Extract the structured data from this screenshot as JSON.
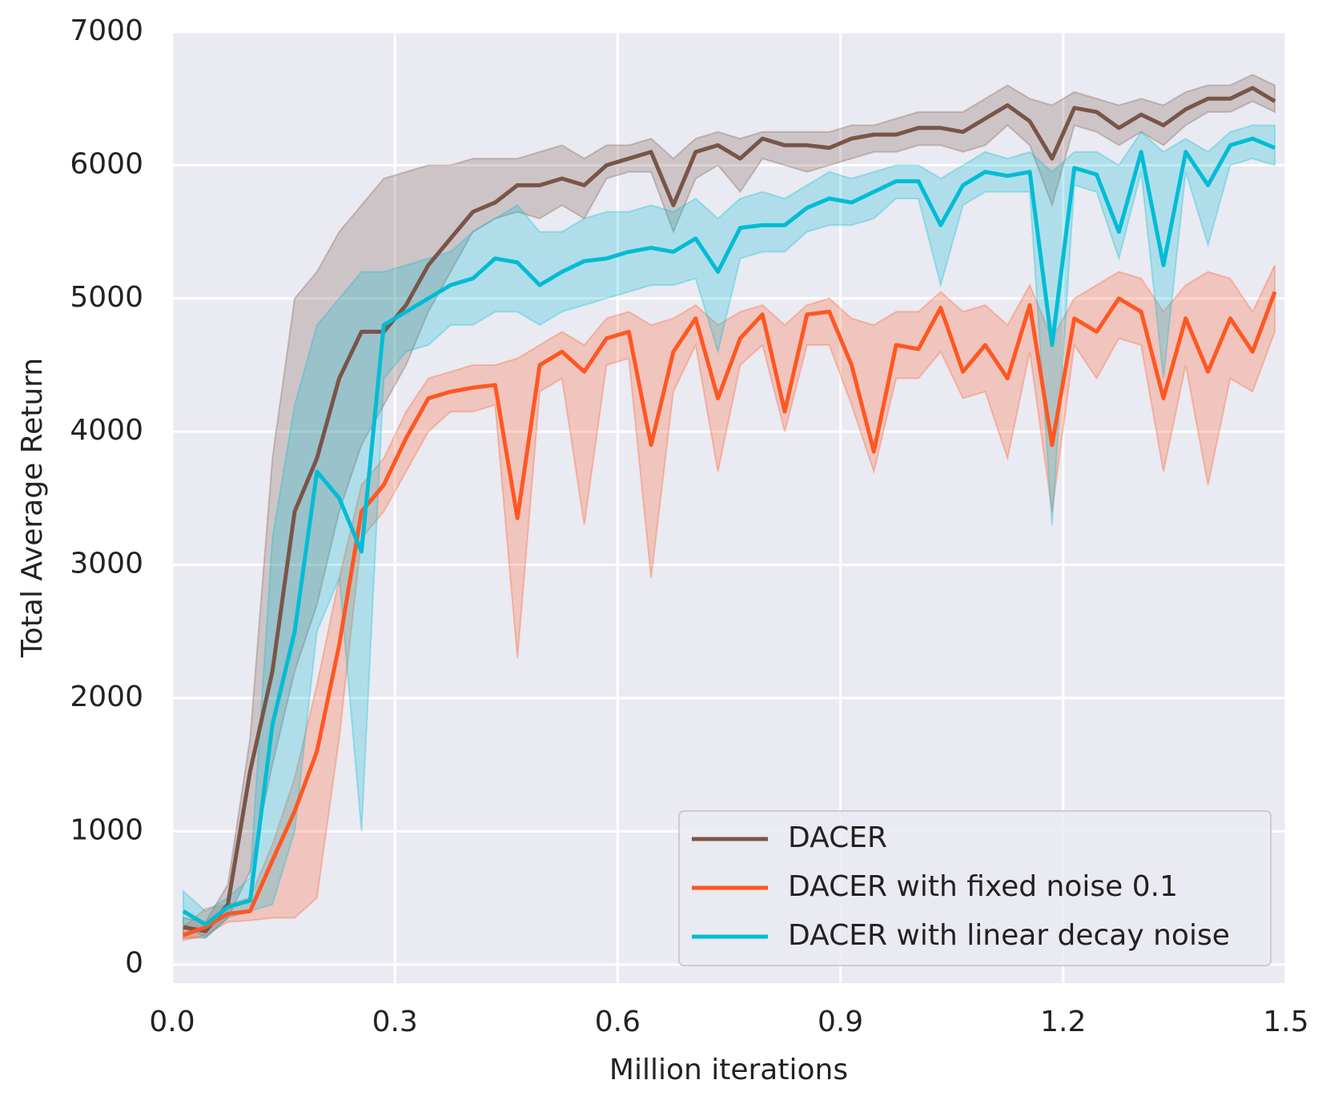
{
  "chart_data": {
    "type": "line",
    "xlabel": "Million iterations",
    "ylabel": "Total Average Return",
    "xlim": [
      0,
      1.5
    ],
    "ylim": [
      -140,
      7000
    ],
    "xticks": [
      {
        "value": 0,
        "label": "0.0"
      },
      0.3,
      0.6,
      0.9,
      1.2,
      1.5
    ],
    "yticks": [
      0,
      1000,
      2000,
      3000,
      4000,
      5000,
      6000,
      7000
    ],
    "grid": true,
    "legend": "lower right",
    "background": "#eaeaf2",
    "x": [
      0.015,
      0.045,
      0.075,
      0.105,
      0.135,
      0.165,
      0.195,
      0.225,
      0.255,
      0.285,
      0.315,
      0.345,
      0.375,
      0.405,
      0.435,
      0.465,
      0.495,
      0.525,
      0.555,
      0.585,
      0.615,
      0.645,
      0.675,
      0.705,
      0.735,
      0.765,
      0.795,
      0.825,
      0.855,
      0.885,
      0.915,
      0.945,
      0.975,
      1.005,
      1.035,
      1.065,
      1.095,
      1.125,
      1.155,
      1.185,
      1.215,
      1.245,
      1.275,
      1.305,
      1.335,
      1.365,
      1.395,
      1.425,
      1.455,
      1.485
    ],
    "series": [
      {
        "name": "DACER",
        "color": "#795548",
        "values": [
          280,
          250,
          450,
          1450,
          2200,
          3400,
          3800,
          4400,
          4750,
          4750,
          4950,
          5250,
          5450,
          5650,
          5720,
          5850,
          5850,
          5900,
          5850,
          6000,
          6050,
          6100,
          5700,
          6100,
          6150,
          6050,
          6200,
          6150,
          6150,
          6130,
          6200,
          6230,
          6230,
          6280,
          6280,
          6250,
          6350,
          6450,
          6330,
          6050,
          6430,
          6400,
          6280,
          6380,
          6300,
          6420,
          6500,
          6500,
          6580,
          6480
        ],
        "lower": [
          200,
          200,
          350,
          700,
          1500,
          2200,
          2700,
          3400,
          3900,
          4200,
          4500,
          4900,
          5200,
          5500,
          5600,
          5650,
          5600,
          5700,
          5600,
          5900,
          5950,
          5950,
          5500,
          5900,
          6000,
          5800,
          6050,
          6000,
          5950,
          6000,
          6050,
          6100,
          6100,
          6150,
          6150,
          6100,
          6150,
          6300,
          6150,
          5700,
          6300,
          6250,
          6150,
          6250,
          6150,
          6300,
          6400,
          6400,
          6480,
          6400
        ],
        "upper": [
          350,
          320,
          600,
          1700,
          3800,
          5000,
          5200,
          5500,
          5700,
          5900,
          5950,
          6000,
          6000,
          6050,
          6050,
          6050,
          6100,
          6150,
          6050,
          6150,
          6150,
          6200,
          6050,
          6200,
          6250,
          6200,
          6250,
          6250,
          6250,
          6250,
          6300,
          6300,
          6350,
          6400,
          6400,
          6400,
          6500,
          6600,
          6500,
          6450,
          6550,
          6500,
          6450,
          6500,
          6450,
          6550,
          6600,
          6600,
          6680,
          6600
        ]
      },
      {
        "name": "DACER with fixed noise 0.1",
        "color": "#ff5722",
        "values": [
          220,
          280,
          380,
          400,
          780,
          1150,
          1600,
          2400,
          3400,
          3600,
          3950,
          4250,
          4300,
          4330,
          4350,
          3350,
          4500,
          4600,
          4450,
          4700,
          4750,
          3900,
          4600,
          4850,
          4250,
          4700,
          4880,
          4150,
          4880,
          4900,
          4500,
          3850,
          4650,
          4620,
          4930,
          4450,
          4650,
          4400,
          4950,
          3900,
          4850,
          4750,
          5000,
          4900,
          4250,
          4850,
          4450,
          4850,
          4600,
          5050
        ],
        "lower": [
          180,
          220,
          320,
          330,
          350,
          350,
          500,
          1700,
          3200,
          3400,
          3700,
          4000,
          4150,
          4150,
          4200,
          2300,
          4300,
          4400,
          3300,
          4500,
          4550,
          2900,
          4300,
          4650,
          3700,
          4500,
          4650,
          4000,
          4650,
          4650,
          4200,
          3700,
          4400,
          4400,
          4600,
          4250,
          4300,
          3800,
          4600,
          3400,
          4650,
          4400,
          4700,
          4650,
          3700,
          4500,
          3600,
          4400,
          4300,
          4750
        ],
        "upper": [
          280,
          420,
          450,
          500,
          900,
          1400,
          2100,
          2900,
          3600,
          3800,
          4150,
          4400,
          4450,
          4500,
          4500,
          4550,
          4650,
          4750,
          4650,
          4850,
          4900,
          4800,
          4850,
          4950,
          4800,
          4900,
          4950,
          4800,
          4950,
          5000,
          4850,
          4800,
          4900,
          4900,
          5050,
          4900,
          4950,
          4800,
          5100,
          4700,
          5000,
          5100,
          5200,
          5150,
          4900,
          5100,
          5200,
          5150,
          4900,
          5250
        ]
      },
      {
        "name": "DACER with linear decay noise",
        "color": "#00bcd4",
        "values": [
          400,
          300,
          430,
          480,
          1800,
          2500,
          3700,
          3500,
          3100,
          4800,
          4900,
          5000,
          5100,
          5150,
          5300,
          5270,
          5100,
          5200,
          5280,
          5300,
          5350,
          5380,
          5350,
          5450,
          5200,
          5530,
          5550,
          5550,
          5680,
          5750,
          5720,
          5800,
          5880,
          5880,
          5550,
          5850,
          5950,
          5920,
          5950,
          4650,
          5980,
          5930,
          5500,
          6100,
          5250,
          6100,
          5850,
          6150,
          6200,
          6130
        ],
        "lower": [
          300,
          200,
          350,
          400,
          450,
          1000,
          2500,
          2900,
          1000,
          4400,
          4600,
          4650,
          4800,
          4800,
          4900,
          4900,
          4800,
          4900,
          4950,
          5000,
          5050,
          5100,
          5100,
          5150,
          4600,
          5300,
          5350,
          5350,
          5500,
          5550,
          5550,
          5600,
          5750,
          5750,
          5100,
          5700,
          5800,
          5800,
          5800,
          3300,
          5850,
          5800,
          5300,
          5950,
          4400,
          5950,
          5400,
          6000,
          6050,
          6000
        ],
        "upper": [
          550,
          400,
          500,
          650,
          3200,
          4200,
          4800,
          5000,
          5200,
          5200,
          5250,
          5300,
          5350,
          5500,
          5600,
          5700,
          5500,
          5500,
          5600,
          5650,
          5650,
          5700,
          5650,
          5750,
          5600,
          5750,
          5800,
          5750,
          5850,
          5950,
          5900,
          5950,
          6000,
          6000,
          5900,
          6000,
          6100,
          6050,
          6100,
          5950,
          6100,
          6100,
          6000,
          6250,
          6100,
          6200,
          6100,
          6250,
          6300,
          6300
        ]
      }
    ]
  }
}
